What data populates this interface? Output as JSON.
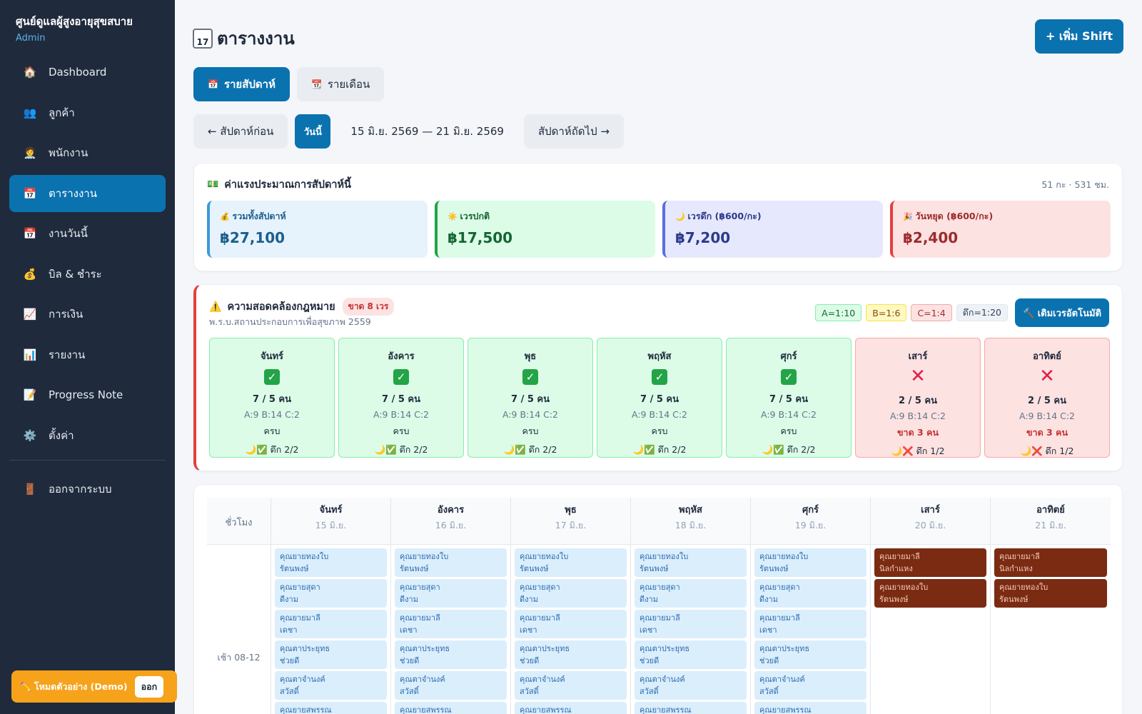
{
  "app": {
    "title": "ศูนย์ดูแลผู้สูงอายุสุขสบาย",
    "role": "Admin"
  },
  "sidebar": {
    "items": [
      {
        "icon": "house-icon",
        "glyph": "🏠",
        "label": "Dashboard"
      },
      {
        "icon": "people-icon",
        "glyph": "👥",
        "label": "ลูกค้า"
      },
      {
        "icon": "staff-icon",
        "glyph": "🧑‍⚕️",
        "label": "พนักงาน"
      },
      {
        "icon": "calendar-icon",
        "glyph": "📅",
        "label": "ตารางงาน",
        "active": true
      },
      {
        "icon": "calendar-icon",
        "glyph": "📅",
        "label": "งานวันนี้"
      },
      {
        "icon": "money-bag-icon",
        "glyph": "💰",
        "label": "บิล & ชำระ"
      },
      {
        "icon": "chart-up-icon",
        "glyph": "📈",
        "label": "การเงิน"
      },
      {
        "icon": "bar-chart-icon",
        "glyph": "📊",
        "label": "รายงาน"
      },
      {
        "icon": "memo-icon",
        "glyph": "📝",
        "label": "Progress Note"
      },
      {
        "icon": "gear-icon",
        "glyph": "⚙️",
        "label": "ตั้งค่า"
      }
    ],
    "logout": {
      "icon": "door-icon",
      "glyph": "🚪",
      "label": "ออกจากระบบ"
    },
    "demo": {
      "label": "✏️ โหมดตัวอย่าง (Demo)",
      "exit": "ออก"
    }
  },
  "header": {
    "title": "ตารางงาน",
    "add_button": "+ เพิ่ม Shift",
    "tabs": [
      {
        "label": "รายสัปดาห์",
        "active": true
      },
      {
        "label": "รายเดือน",
        "active": false
      }
    ],
    "prev_week": "← สัปดาห์ก่อน",
    "today": "วันนี้",
    "range": "15 มิ.ย. 2569 — 21 มิ.ย. 2569",
    "next_week": "สัปดาห์ถัดไป →"
  },
  "cost": {
    "title": "ค่าแรงประมาณการสัปดาห์นี้",
    "meta": "51 กะ · 531 ชม.",
    "tiles": [
      {
        "icon": "money-bag-icon",
        "glyph": "💰",
        "label": "รวมทั้งสัปดาห์",
        "value": "฿27,100",
        "bg": "#e6f3fd",
        "border": "#3b9ad9",
        "color": "#1e5f8c"
      },
      {
        "icon": "sun-icon",
        "glyph": "☀️",
        "label": "เวรปกติ",
        "value": "฿17,500",
        "bg": "#dcfce7",
        "border": "#22a447",
        "color": "#166534"
      },
      {
        "icon": "moon-icon",
        "glyph": "🌙",
        "label": "เวรดึก (฿600/กะ)",
        "value": "฿7,200",
        "bg": "#e6e9fd",
        "border": "#5b6ee0",
        "color": "#2d3a8c"
      },
      {
        "icon": "party-icon",
        "glyph": "🎉",
        "label": "วันหยุด (฿600/กะ)",
        "value": "฿2,400",
        "bg": "#fde2e2",
        "border": "#e53e3e",
        "color": "#9b2c2c"
      }
    ]
  },
  "compliance": {
    "title": "ความสอดคล้องกฎหมาย",
    "badge": "ขาด 8 เวร",
    "subtitle": "พ.ร.บ.สถานประกอบการเพื่อสุขภาพ 2559",
    "legend": [
      {
        "label": "A=1:10",
        "bg": "#dcfce7",
        "border": "#86efac",
        "color": "#166534"
      },
      {
        "label": "B=1:6",
        "bg": "#fef9c3",
        "border": "#fde047",
        "color": "#854d0e"
      },
      {
        "label": "C=1:4",
        "bg": "#fde2e2",
        "border": "#f9a8a8",
        "color": "#9b2c2c"
      },
      {
        "label": "ดึก=1:20",
        "bg": "#eef2f7",
        "border": "#e2e8f0",
        "color": "#334155"
      }
    ],
    "auto_button": "🔨 เติมเวรอัตโนมัติ",
    "days": [
      {
        "name": "จันทร์",
        "ok": true,
        "count": "7 / 5 คน",
        "ratio": "A:9 B:14 C:2",
        "status": "ครบ",
        "night": "🌙✅ ดึก 2/2"
      },
      {
        "name": "อังคาร",
        "ok": true,
        "count": "7 / 5 คน",
        "ratio": "A:9 B:14 C:2",
        "status": "ครบ",
        "night": "🌙✅ ดึก 2/2"
      },
      {
        "name": "พุธ",
        "ok": true,
        "count": "7 / 5 คน",
        "ratio": "A:9 B:14 C:2",
        "status": "ครบ",
        "night": "🌙✅ ดึก 2/2"
      },
      {
        "name": "พฤหัส",
        "ok": true,
        "count": "7 / 5 คน",
        "ratio": "A:9 B:14 C:2",
        "status": "ครบ",
        "night": "🌙✅ ดึก 2/2"
      },
      {
        "name": "ศุกร์",
        "ok": true,
        "count": "7 / 5 คน",
        "ratio": "A:9 B:14 C:2",
        "status": "ครบ",
        "night": "🌙✅ ดึก 2/2"
      },
      {
        "name": "เสาร์",
        "ok": false,
        "count": "2 / 5 คน",
        "ratio": "A:9 B:14 C:2",
        "status": "ขาด 3 คน",
        "night": "🌙❌ ดึก 1/2"
      },
      {
        "name": "อาทิตย์",
        "ok": false,
        "count": "2 / 5 คน",
        "ratio": "A:9 B:14 C:2",
        "status": "ขาด 3 คน",
        "night": "🌙❌ ดึก 1/2"
      }
    ]
  },
  "schedule": {
    "time_header": "ชั่วโมง",
    "slot_label": "เช้า 08-12",
    "days": [
      {
        "name": "จันทร์",
        "date": "15 มิ.ย."
      },
      {
        "name": "อังคาร",
        "date": "16 มิ.ย."
      },
      {
        "name": "พุธ",
        "date": "17 มิ.ย."
      },
      {
        "name": "พฤหัส",
        "date": "18 มิ.ย."
      },
      {
        "name": "ศุกร์",
        "date": "19 มิ.ย."
      },
      {
        "name": "เสาร์",
        "date": "20 มิ.ย."
      },
      {
        "name": "อาทิตย์",
        "date": "21 มิ.ย."
      }
    ],
    "weekday_shifts": [
      {
        "l1": "คุณยายทองใบ",
        "l2": "รัตนพงษ์"
      },
      {
        "l1": "คุณยายสุดา",
        "l2": "ดีงาม"
      },
      {
        "l1": "คุณยายมาลี",
        "l2": "เดชา"
      },
      {
        "l1": "คุณตาประยุทธ",
        "l2": "ช่วยดี"
      },
      {
        "l1": "คุณตาจำนงค์",
        "l2": "สวัสดิ์"
      },
      {
        "l1": "คุณยายสพรรณ",
        "l2": ""
      }
    ],
    "weekend_shifts": [
      {
        "l1": "คุณยายมาลี",
        "l2": "นิลกำแหง"
      },
      {
        "l1": "คุณยายทองใบ",
        "l2": "รัตนพงษ์"
      }
    ]
  }
}
